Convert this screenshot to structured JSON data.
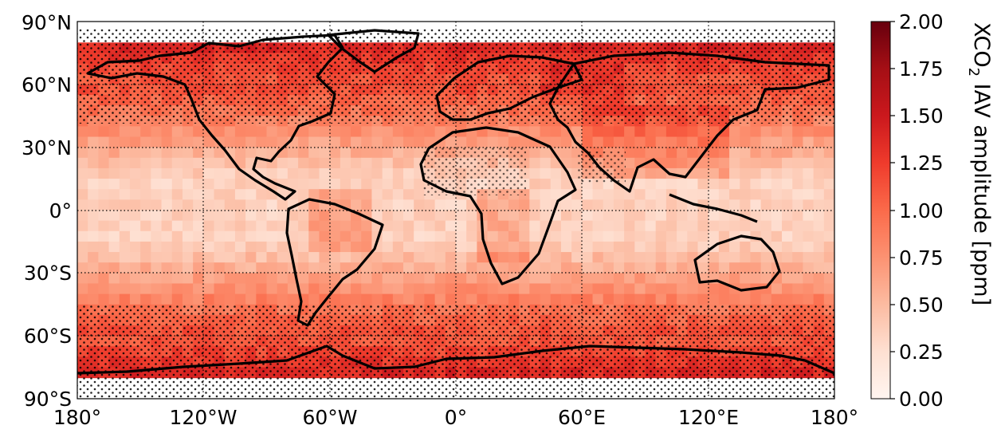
{
  "map": {
    "projection": "PlateCarree",
    "lon_range": [
      -180,
      180
    ],
    "lat_range": [
      -90,
      90
    ],
    "grid_style": "dotted",
    "stippling": "dots mark grid cells where the IAV signal is not significant (e.g. high latitudes / southern oceans)",
    "x_ticks": [
      "180°",
      "120°W",
      "60°W",
      "0°",
      "60°E",
      "120°E",
      "180°"
    ],
    "x_tick_values": [
      -180,
      -120,
      -60,
      0,
      60,
      120,
      180
    ],
    "y_ticks": [
      "90°N",
      "60°N",
      "30°N",
      "0°",
      "30°S",
      "60°S",
      "90°S"
    ],
    "y_tick_values": [
      90,
      60,
      30,
      0,
      -30,
      -60,
      -90
    ]
  },
  "colorbar": {
    "label_main": "XCO",
    "label_sub": "2",
    "label_rest": " IAV amplitude [ppm]",
    "min": 0,
    "max": 2,
    "ticks": [
      "0.00",
      "0.25",
      "0.50",
      "0.75",
      "1.00",
      "1.25",
      "1.50",
      "1.75",
      "2.00"
    ],
    "colormap": "Reds",
    "colors": [
      "#fff5f0",
      "#fee0d2",
      "#fcbba1",
      "#fc9272",
      "#fb6a4a",
      "#ef3b2c",
      "#cb181d",
      "#a50f15",
      "#67000d"
    ]
  }
}
